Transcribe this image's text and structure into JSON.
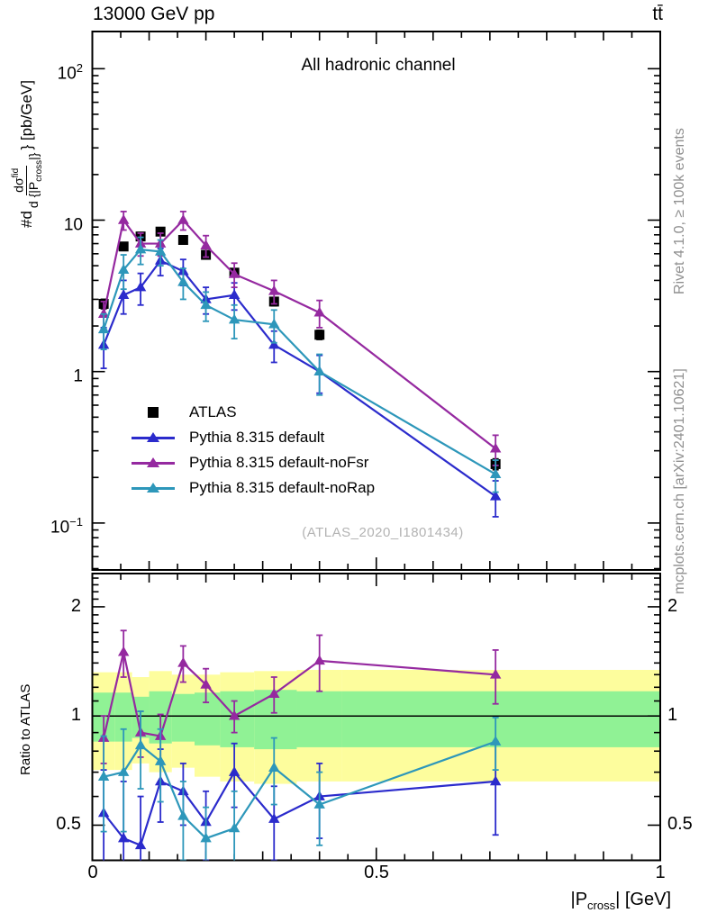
{
  "header": {
    "beam_energy": "13000 GeV pp",
    "process": "tt̄"
  },
  "panel_title": "All hadronic channel",
  "watermark": "(ATLAS_2020_I1801434)",
  "side_notes": {
    "generator_note": "Rivet 4.1.0, ≥ 100k events",
    "source_note": "mcplots.cern.ch [arXiv:2401.10621]"
  },
  "axes": {
    "main_y_label": {
      "prefix": "#d",
      "numerator": "dσ",
      "numerator_sup": "fid",
      "denominator": "d {|P",
      "denominator_sub": "cross",
      "denominator_close": "|}",
      "suffix": "} [pb/GeV]"
    },
    "main_y_ticks": [
      {
        "text": "10",
        "sup": "2"
      },
      {
        "text": "10"
      },
      {
        "text": "1"
      },
      {
        "text": "10",
        "sup": "−1"
      }
    ],
    "ratio_y_label": "Ratio to ATLAS",
    "ratio_y_ticks": [
      {
        "text": "2"
      },
      {
        "text": "1"
      },
      {
        "text": "0.5"
      }
    ],
    "x_ticks": [
      {
        "text": "0"
      },
      {
        "text": "0.5"
      },
      {
        "text": "1"
      }
    ],
    "x_label": {
      "prefix": "|P",
      "sub": "cross",
      "suffix": "| [GeV]"
    }
  },
  "legend": {
    "items": [
      {
        "label": "ATLAS",
        "marker": "square",
        "line": false,
        "color": "#000000"
      },
      {
        "label": "Pythia 8.315 default",
        "marker": "triangle",
        "line": true,
        "color": "#2b2bcc"
      },
      {
        "label": "Pythia 8.315 default-noFsr",
        "marker": "triangle",
        "line": true,
        "color": "#9529a0"
      },
      {
        "label": "Pythia 8.315 default-noRap",
        "marker": "triangle",
        "line": true,
        "color": "#2d97ba"
      }
    ]
  },
  "chart_data": {
    "type": "line",
    "title": "All hadronic channel",
    "xlabel": "|P_cross| [GeV]",
    "x_range": [
      0,
      1
    ],
    "x": [
      0.02,
      0.055,
      0.085,
      0.12,
      0.16,
      0.2,
      0.25,
      0.32,
      0.4,
      0.71
    ],
    "main": {
      "ylabel": "#d dσ^fid / d{|P_cross|} [pb/GeV]",
      "yscale": "log",
      "ylim": [
        0.049,
        176
      ],
      "y_tick_values": [
        100,
        10,
        1,
        0.1
      ]
    },
    "ratio": {
      "ylabel": "Ratio to ATLAS",
      "yscale": "log",
      "ylim": [
        0.4,
        2.47
      ],
      "y_tick_values": [
        2,
        1,
        0.5
      ],
      "reference_line": 1,
      "band": {
        "edges": [
          0,
          0.04,
          0.07,
          0.1,
          0.14,
          0.18,
          0.225,
          0.285,
          0.36,
          0.44,
          1.0
        ],
        "yellow_lo": [
          0.71,
          0.71,
          0.74,
          0.7,
          0.72,
          0.68,
          0.66,
          0.65,
          0.66,
          0.66
        ],
        "yellow_hi": [
          1.32,
          1.32,
          1.28,
          1.33,
          1.3,
          1.3,
          1.32,
          1.33,
          1.34,
          1.34
        ],
        "green_lo": [
          0.85,
          0.85,
          0.87,
          0.84,
          0.85,
          0.83,
          0.82,
          0.81,
          0.82,
          0.82
        ],
        "green_hi": [
          1.16,
          1.16,
          1.13,
          1.17,
          1.15,
          1.16,
          1.17,
          1.18,
          1.17,
          1.17
        ],
        "yellow_color": "#fdfd9d",
        "green_color": "#90f295"
      }
    },
    "series": [
      {
        "id": "atlas",
        "name": "ATLAS",
        "color": "#000000",
        "marker": "square",
        "line": false,
        "y": [
          2.8,
          6.7,
          7.8,
          8.4,
          7.4,
          5.9,
          4.5,
          2.9,
          1.75,
          0.245
        ],
        "yerr": [
          0.2,
          0.35,
          0.4,
          0.45,
          0.4,
          0.3,
          0.25,
          0.18,
          0.12,
          0.02
        ],
        "ratio": null
      },
      {
        "id": "pythia-default",
        "name": "Pythia 8.315 default",
        "color": "#2b2bcc",
        "marker": "triangle",
        "line": true,
        "y": [
          1.5,
          3.2,
          3.6,
          5.4,
          4.6,
          3.0,
          3.2,
          1.5,
          1.0,
          0.15
        ],
        "yerr": [
          0.45,
          0.8,
          0.85,
          1.1,
          0.9,
          0.6,
          0.65,
          0.35,
          0.28,
          0.04
        ],
        "ratio": [
          0.54,
          0.46,
          0.44,
          0.66,
          0.62,
          0.51,
          0.7,
          0.52,
          0.6,
          0.66
        ],
        "ratio_err": [
          0.17,
          0.2,
          0.16,
          0.15,
          0.12,
          0.11,
          0.14,
          0.12,
          0.14,
          0.19
        ]
      },
      {
        "id": "pythia-nofsr",
        "name": "Pythia 8.315 default-noFsr",
        "color": "#9529a0",
        "marker": "triangle",
        "line": true,
        "y": [
          2.4,
          10.0,
          7.0,
          7.0,
          10.0,
          6.8,
          4.4,
          3.4,
          2.45,
          0.31
        ],
        "yerr": [
          0.5,
          1.4,
          1.2,
          1.2,
          1.4,
          1.1,
          0.8,
          0.6,
          0.5,
          0.07
        ],
        "ratio": [
          0.87,
          1.5,
          0.9,
          0.88,
          1.4,
          1.22,
          1.0,
          1.15,
          1.42,
          1.3
        ],
        "ratio_err": [
          0.13,
          0.22,
          0.13,
          0.13,
          0.16,
          0.13,
          0.1,
          0.13,
          0.25,
          0.22
        ]
      },
      {
        "id": "pythia-norap",
        "name": "Pythia 8.315 default-noRap",
        "color": "#2d97ba",
        "marker": "triangle",
        "line": true,
        "y": [
          1.9,
          4.7,
          6.4,
          6.2,
          3.9,
          2.75,
          2.2,
          2.05,
          1.0,
          0.21
        ],
        "yerr": [
          0.5,
          1.2,
          1.3,
          1.2,
          0.9,
          0.6,
          0.55,
          0.5,
          0.3,
          0.05
        ],
        "ratio": [
          0.68,
          0.7,
          0.83,
          0.75,
          0.53,
          0.46,
          0.49,
          0.72,
          0.57,
          0.85
        ],
        "ratio_err": [
          0.2,
          0.22,
          0.2,
          0.17,
          0.13,
          0.1,
          0.13,
          0.15,
          0.13,
          0.14
        ]
      }
    ]
  }
}
